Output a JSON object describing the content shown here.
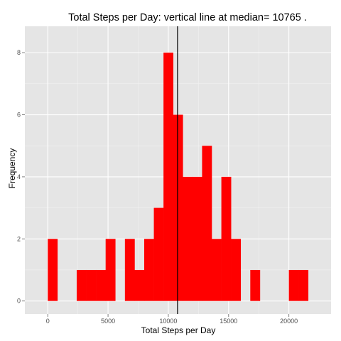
{
  "chart_data": {
    "type": "bar",
    "title": "Total Steps per Day: vertical line at median= 10765 .",
    "xlabel": "Total Steps per Day",
    "ylabel": "Frequency",
    "xlim": [
      -1900,
      23500
    ],
    "ylim": [
      -0.42,
      8.85
    ],
    "x_ticks": [
      0,
      5000,
      10000,
      15000,
      20000
    ],
    "x_tick_labels": [
      "0",
      "5000",
      "10000",
      "15000",
      "20000"
    ],
    "y_ticks": [
      0,
      2,
      4,
      6,
      8
    ],
    "y_tick_labels": [
      "0",
      "2",
      "4",
      "6",
      "8"
    ],
    "bin_width": 800,
    "bars": [
      {
        "x0": 0,
        "x1": 800,
        "count": 2
      },
      {
        "x0": 2400,
        "x1": 3200,
        "count": 1
      },
      {
        "x0": 3200,
        "x1": 4000,
        "count": 1
      },
      {
        "x0": 4000,
        "x1": 4800,
        "count": 1
      },
      {
        "x0": 4800,
        "x1": 5600,
        "count": 2
      },
      {
        "x0": 6400,
        "x1": 7200,
        "count": 2
      },
      {
        "x0": 7200,
        "x1": 8000,
        "count": 1
      },
      {
        "x0": 8000,
        "x1": 8800,
        "count": 2
      },
      {
        "x0": 8800,
        "x1": 9600,
        "count": 3
      },
      {
        "x0": 9600,
        "x1": 10400,
        "count": 8
      },
      {
        "x0": 10400,
        "x1": 11200,
        "count": 6
      },
      {
        "x0": 11200,
        "x1": 12000,
        "count": 4
      },
      {
        "x0": 12000,
        "x1": 12800,
        "count": 4
      },
      {
        "x0": 12800,
        "x1": 13600,
        "count": 5
      },
      {
        "x0": 13600,
        "x1": 14400,
        "count": 2
      },
      {
        "x0": 14400,
        "x1": 15200,
        "count": 4
      },
      {
        "x0": 15200,
        "x1": 16000,
        "count": 2
      },
      {
        "x0": 16800,
        "x1": 17600,
        "count": 1
      },
      {
        "x0": 20000,
        "x1": 20800,
        "count": 1
      },
      {
        "x0": 20800,
        "x1": 21600,
        "count": 1
      }
    ],
    "median_line": 10765,
    "colors": {
      "bar": "#ff0000",
      "panel_background": "#e5e5e5",
      "grid_major": "#ffffff",
      "grid_minor": "#f2f2f2",
      "median_line": "#000000"
    },
    "grid": true,
    "legend": "none"
  }
}
